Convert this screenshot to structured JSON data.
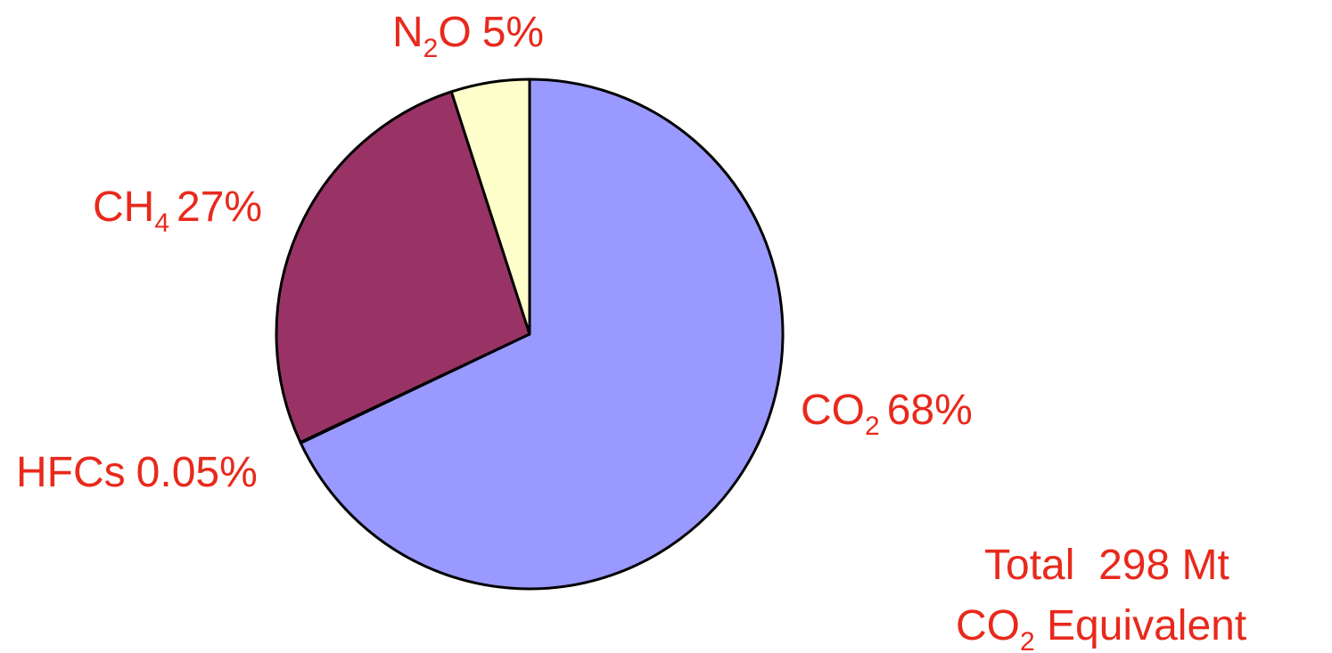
{
  "chart_data": {
    "type": "pie",
    "slices": [
      {
        "name": "CO2",
        "label": "CO",
        "sub": "2",
        "value_text": "68%",
        "value": 68,
        "color": "#9999ff"
      },
      {
        "name": "HFCs",
        "label": "HFCs",
        "sub": "",
        "value_text": "0.05%",
        "value": 0.05,
        "color": "#993366"
      },
      {
        "name": "CH4",
        "label": "CH",
        "sub": "4",
        "value_text": "27%",
        "value": 27,
        "color": "#993366"
      },
      {
        "name": "N2O",
        "label": "N",
        "sub": "2",
        "tail": "O",
        "value_text": "5%",
        "value": 5,
        "color": "#ffffcc"
      }
    ],
    "total": {
      "line1": "Total  298 Mt",
      "line2_main": "CO",
      "line2_sub": "2",
      "line2_rest": " Equivalent"
    },
    "label_color": "#e8291c",
    "outline_color": "#000000"
  }
}
